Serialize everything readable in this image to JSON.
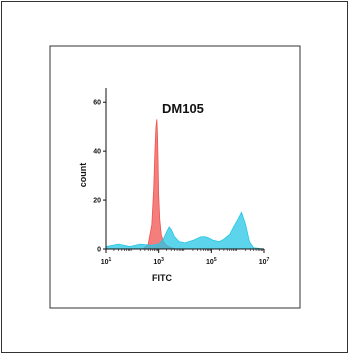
{
  "chart_data": {
    "type": "area",
    "title": "DM105",
    "xlabel": "FITC",
    "ylabel": "count",
    "x_scale": "log",
    "xlim": [
      10,
      10000000
    ],
    "ylim": [
      0,
      65
    ],
    "x_ticks": [
      {
        "value": 10,
        "base": "10",
        "exp": "1"
      },
      {
        "value": 1000,
        "base": "10",
        "exp": "3"
      },
      {
        "value": 100000,
        "base": "10",
        "exp": "5"
      },
      {
        "value": 10000000,
        "base": "10",
        "exp": "7"
      }
    ],
    "y_ticks": [
      0,
      20,
      40,
      60
    ],
    "grid": false,
    "series": [
      {
        "color": "#ef5350",
        "x": [
          10,
          250,
          400,
          550,
          650,
          720,
          790,
          850,
          900,
          950,
          1000,
          1100,
          1250,
          1500,
          2000,
          3000,
          5000
        ],
        "y": [
          0,
          0,
          2,
          10,
          25,
          40,
          50,
          53,
          47,
          35,
          22,
          12,
          6,
          3,
          1.5,
          0.5,
          0
        ]
      },
      {
        "color": "#26c6e6",
        "x": [
          10,
          30,
          80,
          200,
          500,
          1000,
          1500,
          2000,
          2500,
          3000,
          4000,
          6000,
          10000,
          20000,
          40000,
          60000,
          80000,
          120000,
          200000,
          300000,
          500000,
          700000,
          1000000,
          1400000,
          2000000,
          2800000,
          4000000,
          10000000
        ],
        "y": [
          1,
          2,
          1,
          2,
          1.5,
          2,
          4,
          7,
          9,
          8,
          5,
          3,
          2.5,
          3.5,
          5,
          5,
          4.5,
          3.5,
          3,
          4,
          6,
          9,
          12,
          15,
          10,
          3,
          0.5,
          0
        ]
      }
    ]
  }
}
